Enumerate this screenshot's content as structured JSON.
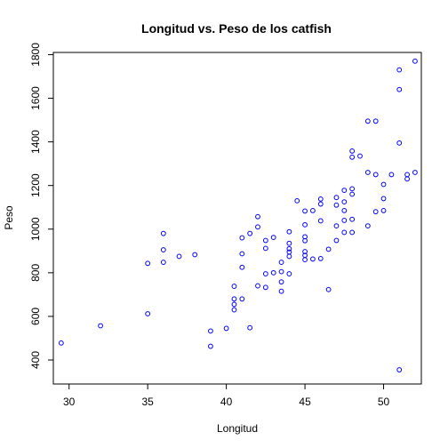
{
  "chart_data": {
    "type": "scatter",
    "title": "Longitud vs. Peso de los catfish",
    "xlabel": "Longitud",
    "ylabel": "Peso",
    "xlim": [
      29.0,
      52.4
    ],
    "ylim": [
      290,
      1810
    ],
    "xticks": [
      30,
      35,
      40,
      45,
      50
    ],
    "yticks": [
      400,
      600,
      800,
      1000,
      1200,
      1400,
      1600,
      1800
    ],
    "point_color": "#0000ff",
    "grid": false,
    "legend": "none",
    "points": [
      [
        29.5,
        478
      ],
      [
        32.0,
        557
      ],
      [
        35.0,
        612
      ],
      [
        35.0,
        843
      ],
      [
        36.0,
        980
      ],
      [
        36.0,
        905
      ],
      [
        36.0,
        848
      ],
      [
        37.0,
        875
      ],
      [
        38.0,
        883
      ],
      [
        39.0,
        463
      ],
      [
        39.0,
        533
      ],
      [
        40.0,
        545
      ],
      [
        40.5,
        630
      ],
      [
        40.5,
        655
      ],
      [
        40.5,
        680
      ],
      [
        40.5,
        738
      ],
      [
        41.0,
        680
      ],
      [
        41.0,
        825
      ],
      [
        41.0,
        887
      ],
      [
        41.0,
        960
      ],
      [
        41.5,
        548
      ],
      [
        41.5,
        980
      ],
      [
        42.0,
        740
      ],
      [
        42.0,
        1010
      ],
      [
        42.0,
        1057
      ],
      [
        42.5,
        733
      ],
      [
        42.5,
        795
      ],
      [
        42.5,
        912
      ],
      [
        42.5,
        948
      ],
      [
        43.0,
        962
      ],
      [
        43.0,
        800
      ],
      [
        43.5,
        715
      ],
      [
        43.5,
        758
      ],
      [
        43.5,
        805
      ],
      [
        43.5,
        848
      ],
      [
        44.0,
        795
      ],
      [
        44.0,
        875
      ],
      [
        44.0,
        895
      ],
      [
        44.0,
        910
      ],
      [
        44.0,
        935
      ],
      [
        44.0,
        988
      ],
      [
        44.5,
        1130
      ],
      [
        45.0,
        860
      ],
      [
        45.0,
        880
      ],
      [
        45.0,
        897
      ],
      [
        45.0,
        947
      ],
      [
        45.0,
        965
      ],
      [
        45.0,
        1020
      ],
      [
        45.0,
        1083
      ],
      [
        45.5,
        863
      ],
      [
        45.5,
        1085
      ],
      [
        46.0,
        865
      ],
      [
        46.0,
        1038
      ],
      [
        46.0,
        1115
      ],
      [
        46.0,
        1138
      ],
      [
        46.5,
        723
      ],
      [
        46.5,
        908
      ],
      [
        47.0,
        948
      ],
      [
        47.0,
        1015
      ],
      [
        47.0,
        1110
      ],
      [
        47.0,
        1145
      ],
      [
        47.5,
        985
      ],
      [
        47.5,
        1040
      ],
      [
        47.5,
        1085
      ],
      [
        47.5,
        1125
      ],
      [
        47.5,
        1178
      ],
      [
        48.0,
        985
      ],
      [
        48.0,
        1045
      ],
      [
        48.0,
        1160
      ],
      [
        48.0,
        1185
      ],
      [
        48.0,
        1330
      ],
      [
        48.0,
        1358
      ],
      [
        48.5,
        1335
      ],
      [
        49.0,
        1015
      ],
      [
        49.0,
        1260
      ],
      [
        49.0,
        1495
      ],
      [
        49.5,
        1080
      ],
      [
        49.5,
        1250
      ],
      [
        49.5,
        1495
      ],
      [
        50.0,
        1085
      ],
      [
        50.0,
        1140
      ],
      [
        50.0,
        1205
      ],
      [
        50.5,
        1250
      ],
      [
        51.0,
        355
      ],
      [
        51.0,
        1395
      ],
      [
        51.0,
        1640
      ],
      [
        51.0,
        1730
      ],
      [
        51.5,
        1230
      ],
      [
        51.5,
        1250
      ],
      [
        52.0,
        1260
      ],
      [
        52.0,
        1770
      ]
    ]
  }
}
